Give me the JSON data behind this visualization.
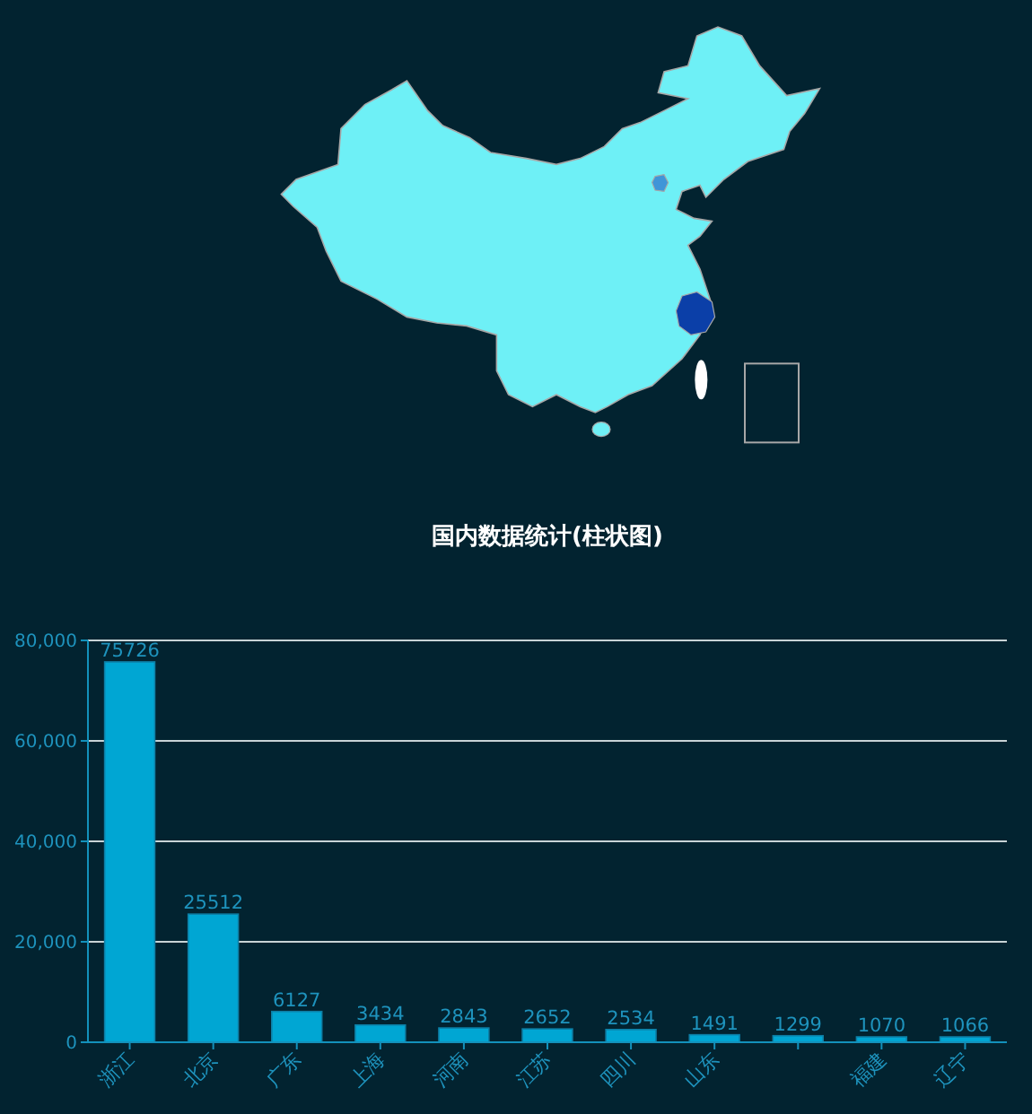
{
  "chart_data": {
    "type": "bar",
    "title": "国内数据统计(柱状图)",
    "categories": [
      "浙江",
      "北京",
      "广东",
      "上海",
      "河南",
      "江苏",
      "四川",
      "山东",
      null,
      "福建",
      "辽宁"
    ],
    "values": [
      75726,
      25512,
      6127,
      3434,
      2843,
      2652,
      2534,
      1491,
      1299,
      1070,
      1066
    ],
    "color": "#00a6d3",
    "ylim": [
      0,
      80000
    ],
    "yticks": [
      0,
      {
        "value": 20000,
        "label": "20,000"
      },
      {
        "value": 40000,
        "label": "40,000"
      },
      {
        "value": 60000,
        "label": "60,000"
      },
      {
        "value": 80000,
        "label": "80,000"
      }
    ],
    "grid": "y",
    "data_labels": true
  }
}
